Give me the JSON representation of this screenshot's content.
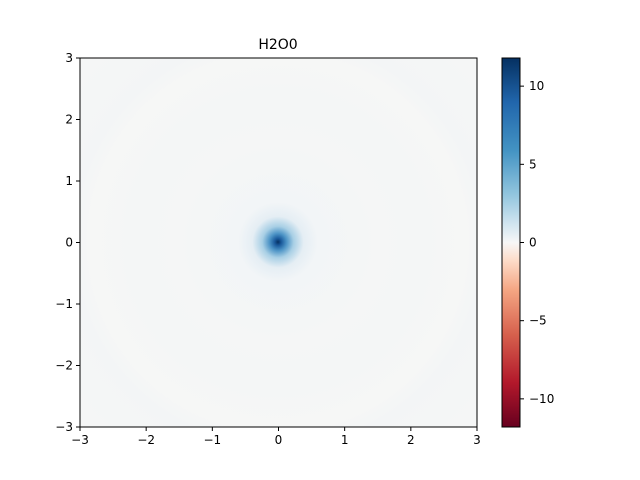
{
  "chart_data": {
    "type": "heatmap",
    "title": "H2O0",
    "xlabel": "",
    "ylabel": "",
    "xlim": [
      -3,
      3
    ],
    "ylim": [
      -3,
      3
    ],
    "x_ticks": [
      -3,
      -2,
      -1,
      0,
      1,
      2,
      3
    ],
    "y_ticks": [
      -3,
      -2,
      -1,
      0,
      1,
      2,
      3
    ],
    "x_tick_labels": [
      "−3",
      "−2",
      "−1",
      "0",
      "1",
      "2",
      "3"
    ],
    "y_tick_labels": [
      "−3",
      "−2",
      "−1",
      "0",
      "1",
      "2",
      "3"
    ],
    "colormap": "RdBu",
    "colorbar": {
      "range": [
        -11.8,
        11.8
      ],
      "ticks": [
        10,
        5,
        0,
        -5,
        -10
      ],
      "tick_labels": [
        "10",
        "5",
        "0",
        "−5",
        "−10"
      ],
      "colors": {
        "max": "#053061",
        "high": "#2166ac",
        "mid_high": "#92c5de",
        "zero": "#f7f7f7",
        "mid_low": "#f4a582",
        "low": "#b2182b",
        "min": "#67001f"
      }
    },
    "field": {
      "description_of_values": "Radially symmetric field centered at (0,0)",
      "center": [
        0,
        0
      ],
      "peak_value": 11.8,
      "background_value": 0.0,
      "faint_ring_radius": 2.0
    },
    "grid": false,
    "legend": "none"
  }
}
